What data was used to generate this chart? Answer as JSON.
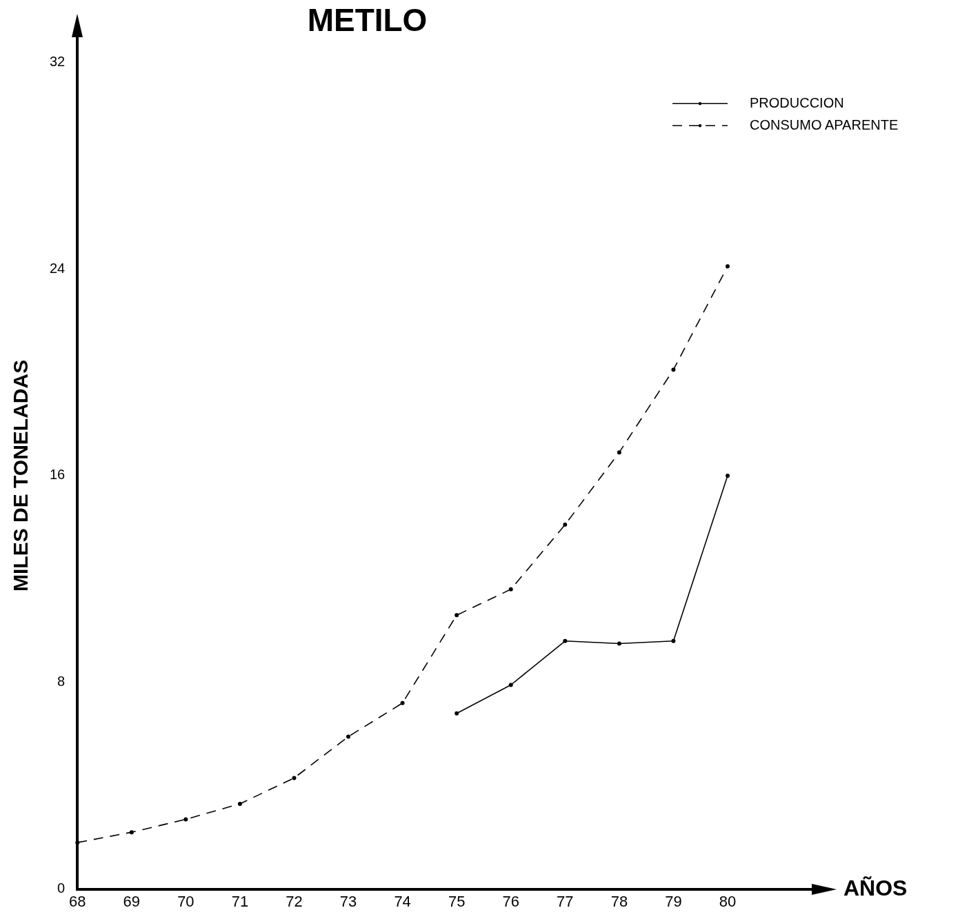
{
  "chart_data": {
    "type": "line",
    "title": "METILO",
    "xlabel": "AÑOS",
    "ylabel": "MILES DE TONELADAS",
    "categories": [
      "68",
      "69",
      "70",
      "71",
      "72",
      "73",
      "74",
      "75",
      "76",
      "77",
      "78",
      "79",
      "80"
    ],
    "ylim": [
      0,
      32
    ],
    "yticks": [
      0,
      8,
      16,
      24,
      32
    ],
    "grid": false,
    "legend": "top right",
    "marker": "circle",
    "series": [
      {
        "name": "PRODUCCION",
        "color": "#000000",
        "line_style": "solid",
        "values": [
          null,
          null,
          null,
          null,
          null,
          null,
          null,
          6.8,
          7.9,
          9.6,
          9.5,
          9.6,
          16
        ]
      },
      {
        "name": "CONSUMO APARENTE",
        "color": "#000000",
        "line_style": "dashed",
        "values": [
          1.8,
          2.2,
          2.7,
          3.3,
          4.3,
          5.9,
          7.2,
          10.6,
          11.6,
          14.1,
          16.9,
          20.1,
          24.1
        ]
      }
    ]
  }
}
